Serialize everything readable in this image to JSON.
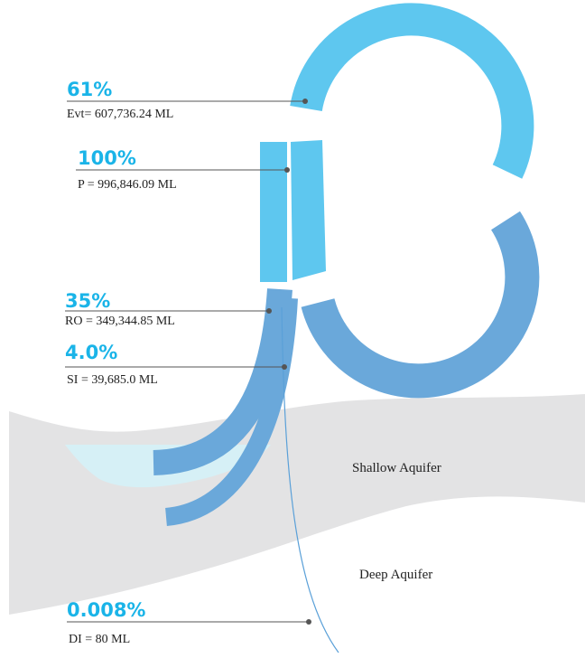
{
  "flows": [
    {
      "percent": "61%",
      "label": "Evt= 607,736.24 ML"
    },
    {
      "percent": "100%",
      "label": "P = 996,846.09 ML"
    },
    {
      "percent": "35%",
      "label": "RO = 349,344.85 ML"
    },
    {
      "percent": "4.0%",
      "label": "SI = 39,685.0 ML"
    },
    {
      "percent": "0.008%",
      "label": "DI = 80 ML"
    }
  ],
  "layers": {
    "shallow": "Shallow Aquifer",
    "deep": "Deep Aquifer"
  }
}
